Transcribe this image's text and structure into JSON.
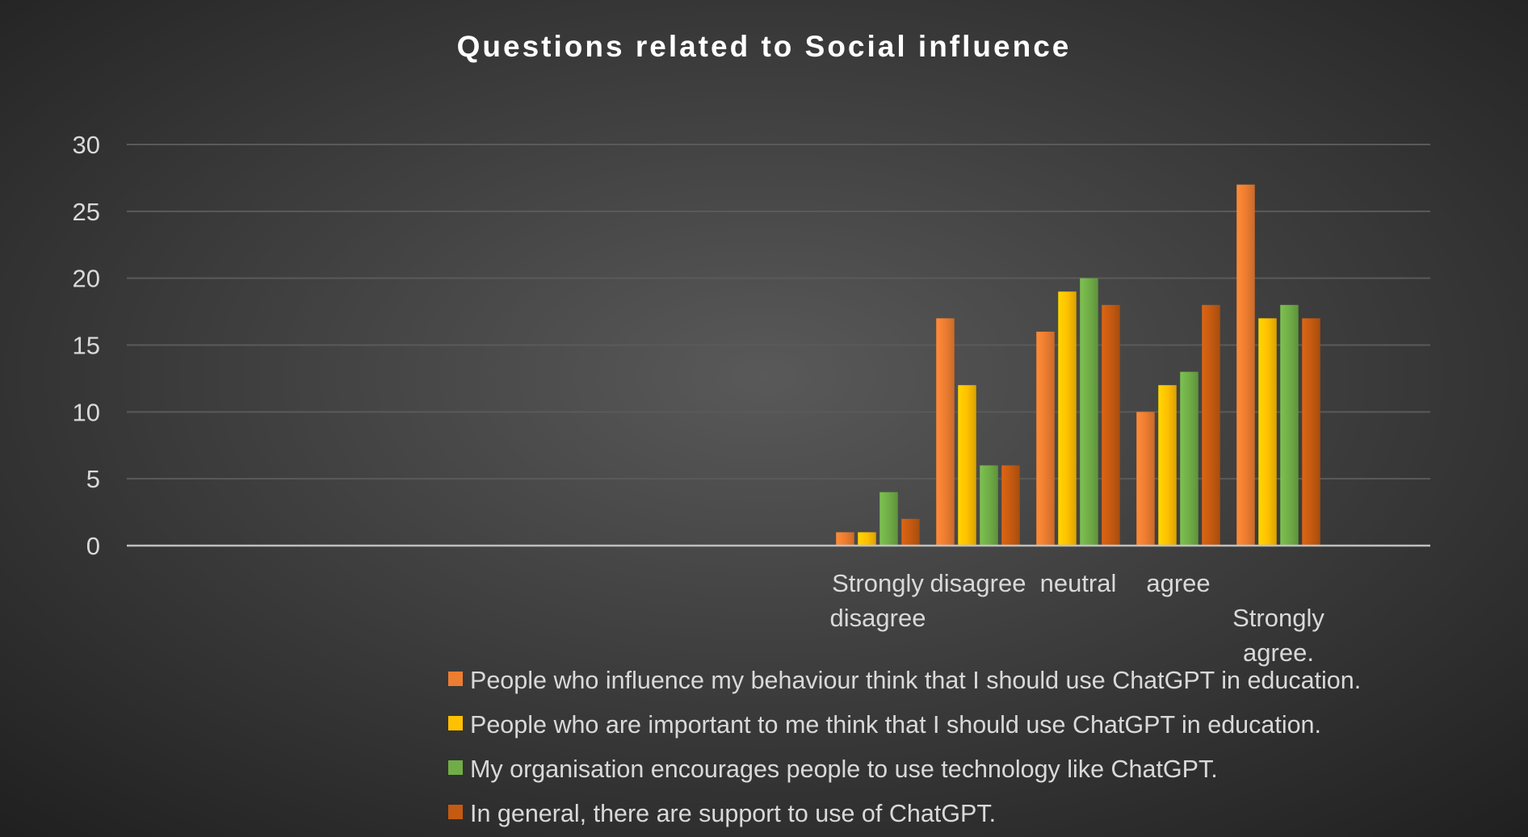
{
  "chart_data": {
    "type": "bar",
    "title": "Questions related to Social influence",
    "xlabel": "",
    "ylabel": "",
    "ylim": [
      0,
      30
    ],
    "yticks": [
      0,
      5,
      10,
      15,
      20,
      25,
      30
    ],
    "grid": true,
    "legend_position": "bottom",
    "categories": [
      "",
      "",
      "",
      "",
      "",
      "",
      "",
      "Strongly disagree",
      "disagree",
      "neutral",
      "agree",
      "Strongly agree."
    ],
    "category_label_lines": [
      [],
      [],
      [],
      [],
      [],
      [],
      [],
      [
        "Strongly",
        "disagree"
      ],
      [
        "disagree"
      ],
      [
        "neutral"
      ],
      [
        "agree"
      ],
      [
        "",
        "Strongly",
        "agree."
      ]
    ],
    "series": [
      {
        "name": "People who influence my behaviour think that I should use ChatGPT in education.",
        "color": "#ED7D31",
        "values": [
          null,
          null,
          null,
          null,
          null,
          null,
          null,
          1,
          17,
          16,
          10,
          27
        ]
      },
      {
        "name": "People who are important to me think that I should use ChatGPT in education.",
        "color": "#FFC000",
        "values": [
          null,
          null,
          null,
          null,
          null,
          null,
          null,
          1,
          12,
          19,
          12,
          17
        ]
      },
      {
        "name": "My organisation encourages people to use technology like ChatGPT.",
        "color": "#70AD47",
        "values": [
          null,
          null,
          null,
          null,
          null,
          null,
          null,
          4,
          6,
          20,
          13,
          18
        ]
      },
      {
        "name": "In general, there are support to use of ChatGPT.",
        "color": "#C55A11",
        "values": [
          null,
          null,
          null,
          null,
          null,
          null,
          null,
          2,
          6,
          18,
          18,
          17
        ]
      }
    ]
  },
  "colors": {
    "background_center": "#595959",
    "background_edge": "#1f1f1f",
    "gridline": "#5a5a5a",
    "axis_line": "#bfbfbf"
  }
}
